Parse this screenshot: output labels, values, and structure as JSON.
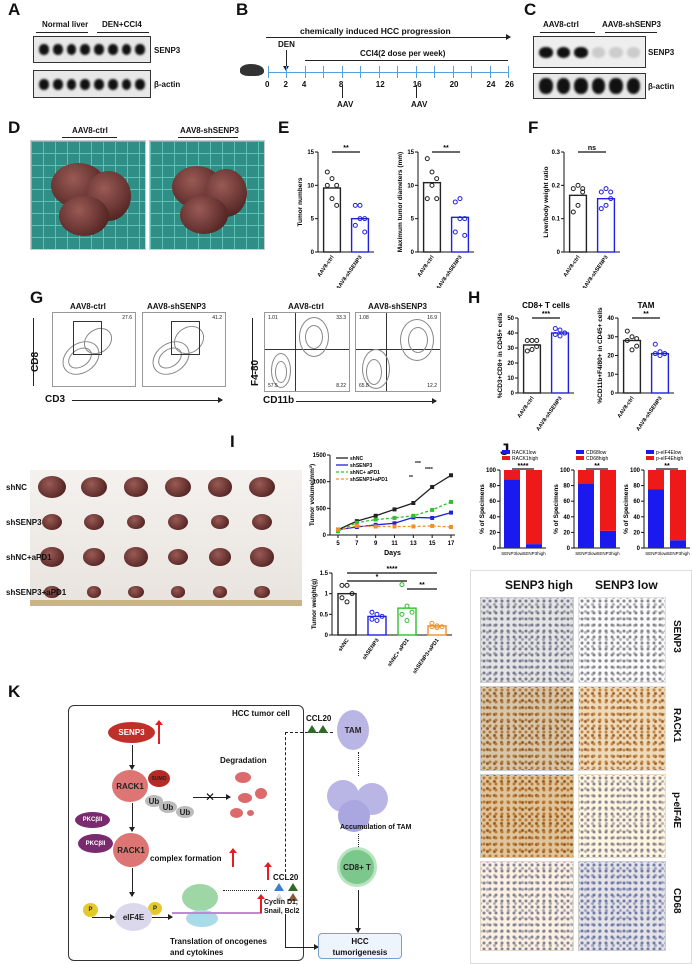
{
  "panels": {
    "A": "A",
    "B": "B",
    "C": "C",
    "D": "D",
    "E": "E",
    "F": "F",
    "G": "G",
    "H": "H",
    "I": "I",
    "J": "J",
    "K": "K"
  },
  "panel_a": {
    "group1": "Normal liver",
    "group2": "DEN+CCl4",
    "row1": "SENP3",
    "row2": "β-actin"
  },
  "panel_b": {
    "progression": "chemically induced HCC progression",
    "den": "DEN",
    "ccl4": "CCl4(2 dose per week)",
    "ticks": [
      "0",
      "2",
      "4",
      "8",
      "12",
      "16",
      "20",
      "24",
      "26"
    ],
    "aav1": "AAV",
    "aav2": "AAV"
  },
  "panel_c": {
    "group1": "AAV8-ctrl",
    "group2": "AAV8-shSENP3",
    "row1": "SENP3",
    "row2": "β-actin"
  },
  "panel_d": {
    "group1": "AAV8-ctrl",
    "group2": "AAV8-shSENP3"
  },
  "panel_g": {
    "title1": "AAV8-ctrl",
    "title2": "AAV8-shSENP3",
    "title3": "AAV8-ctrl",
    "title4": "AAV8-shSENP3",
    "y1": "CD8",
    "x1": "CD3",
    "y2": "F4-80",
    "x2": "CD11b",
    "gate1": "27.6",
    "gate2": "41.2",
    "q3": [
      "1.01",
      "33.3",
      "57.5",
      "8.22"
    ],
    "q4": [
      "1.08",
      "16.9",
      "65.8",
      "12.2"
    ]
  },
  "panel_i": {
    "rows": [
      "shNC",
      "shSENP3",
      "shNC+aPD1",
      "shSENP3+aPD1"
    ]
  },
  "panel_ihc": {
    "col1": "SENP3 high",
    "col2": "SENP3 low",
    "rows": [
      "SENP3",
      "RACK1",
      "p-eIF4E",
      "CD68"
    ]
  },
  "panel_k": {
    "cell": "HCC tumor cell",
    "senp3": "SENP3",
    "rack1": "RACK1",
    "rack1b": "RACK1",
    "sumo": "SUMO",
    "ub": [
      "Ub",
      "Ub",
      "Ub"
    ],
    "degradation": "Degradation",
    "pkc1": "PKCβII",
    "pkc2": "PKCβII",
    "complex": "complex formation",
    "p1": "P",
    "p2": "P",
    "eif4e": "eIF4E",
    "translation1": "Translation of oncogenes",
    "translation2": "and cytokines",
    "ccl20a": "CCL20",
    "cyclin1": "Cyclin D1,",
    "cyclin2": "Snail, Bcl2",
    "ccl20b": "CCL20",
    "tam": "TAM",
    "accum": "Accumulation of TAM",
    "cd8": "CD8+ T",
    "hcc1": "HCC",
    "hcc2": "tumorigenesis"
  },
  "colors": {
    "ctrl": "#222222",
    "sh": "#2020e0",
    "green": "#30c030",
    "orange": "#f0902a",
    "low": "#1a1aee",
    "high": "#ee1a1a"
  },
  "chart_data": [
    {
      "id": "e1",
      "type": "bar",
      "ylabel": "Tumor numbers",
      "ylim": [
        0,
        15
      ],
      "ticks": [
        0,
        5,
        10,
        15
      ],
      "categories": [
        "AAV8-ctrl",
        "AAV8-shSENP3"
      ],
      "values": [
        9.6,
        5.0
      ],
      "points": [
        [
          12,
          11,
          10,
          10,
          8,
          7
        ],
        [
          7,
          7,
          5,
          4,
          5,
          3
        ]
      ],
      "sig": "**"
    },
    {
      "id": "e2",
      "type": "bar",
      "ylabel": "Maximum tumor diameters (mm)",
      "ylim": [
        0,
        15
      ],
      "ticks": [
        0,
        5,
        10,
        15
      ],
      "categories": [
        "AAV8-ctrl",
        "AAV8-shSENP3"
      ],
      "values": [
        10.4,
        5.2
      ],
      "points": [
        [
          14,
          12,
          8,
          8,
          10,
          11
        ],
        [
          7.5,
          8,
          5,
          3,
          5,
          2.5
        ]
      ],
      "sig": "**"
    },
    {
      "id": "f",
      "type": "bar",
      "ylabel": "Liver/body weight ratio",
      "ylim": [
        0,
        0.3
      ],
      "ticks": [
        0,
        0.1,
        0.2,
        0.3
      ],
      "categories": [
        "AAV8-ctrl",
        "AAV8-shSENP3"
      ],
      "values": [
        0.17,
        0.16
      ],
      "points": [
        [
          0.19,
          0.2,
          0.19,
          0.12,
          0.14,
          0.18
        ],
        [
          0.18,
          0.19,
          0.18,
          0.13,
          0.14,
          0.16
        ]
      ],
      "sig": "ns"
    },
    {
      "id": "h1",
      "type": "bar",
      "title": "CD8+ T cells",
      "ylabel": "%CD3+CD8+ in CD45+ cells",
      "ylim": [
        0,
        50
      ],
      "ticks": [
        0,
        10,
        20,
        30,
        40,
        50
      ],
      "categories": [
        "AAV8-ctrl",
        "AAV8-shSENP3"
      ],
      "values": [
        32,
        40
      ],
      "points": [
        [
          35,
          35,
          35,
          28,
          29,
          31
        ],
        [
          43,
          42,
          40,
          39,
          38,
          40
        ]
      ],
      "sig": "***"
    },
    {
      "id": "h2",
      "type": "bar",
      "title": "TAM",
      "ylabel": "%CD11b+F4/80+ in CD45+ cells",
      "ylim": [
        0,
        40
      ],
      "ticks": [
        0,
        10,
        20,
        30,
        40
      ],
      "categories": [
        "AAV8-ctrl",
        "AAV8-shSENP3"
      ],
      "values": [
        28,
        21
      ],
      "points": [
        [
          33,
          30,
          29,
          28,
          23,
          25
        ],
        [
          26,
          22,
          21,
          21,
          20,
          21
        ]
      ],
      "sig": "**"
    },
    {
      "id": "i1",
      "type": "line",
      "xlabel": "Days",
      "ylabel": "Tumor volume(mm³)",
      "ylim": [
        0,
        1500
      ],
      "ticks": [
        0,
        500,
        1000,
        1500
      ],
      "x": [
        5,
        7,
        9,
        11,
        13,
        15,
        17
      ],
      "series": [
        {
          "name": "shNC",
          "values": [
            100,
            260,
            360,
            480,
            600,
            900,
            1120
          ]
        },
        {
          "name": "shSENP3",
          "values": [
            100,
            150,
            190,
            220,
            330,
            320,
            420
          ]
        },
        {
          "name": "shNC+ aPD1",
          "values": [
            70,
            230,
            290,
            320,
            360,
            470,
            620
          ]
        },
        {
          "name": "shSENP3+aPD1",
          "values": [
            100,
            170,
            160,
            160,
            160,
            170,
            150
          ]
        }
      ],
      "sig": [
        "***",
        "****",
        "**"
      ]
    },
    {
      "id": "i2",
      "type": "bar",
      "ylabel": "Tumor weight(g)",
      "ylim": [
        0,
        1.5
      ],
      "ticks": [
        0,
        0.5,
        1.0,
        1.5
      ],
      "categories": [
        "shNC",
        "shSENP3",
        "shNC+ aPD1",
        "shSENP3+aPD1"
      ],
      "values": [
        1.0,
        0.45,
        0.65,
        0.22
      ],
      "points": [
        [
          1.2,
          1.2,
          1.0,
          0.9,
          0.8
        ],
        [
          0.55,
          0.5,
          0.45,
          0.38,
          0.35
        ],
        [
          1.22,
          0.7,
          0.55,
          0.5,
          0.35
        ],
        [
          0.28,
          0.22,
          0.2,
          0.2,
          0.18
        ]
      ],
      "sig": [
        "****",
        "*",
        "**"
      ]
    },
    {
      "id": "j1",
      "type": "stacked-bar",
      "ylabel": "% of Specimens",
      "ylim": [
        0,
        100
      ],
      "ticks": [
        0,
        20,
        40,
        60,
        80,
        100
      ],
      "categories": [
        "SENP3low",
        "SENP3high"
      ],
      "series": [
        {
          "name": "RACK1low",
          "values": [
            88,
            5
          ]
        },
        {
          "name": "RACK1high",
          "values": [
            12,
            95
          ]
        }
      ],
      "sig": "****"
    },
    {
      "id": "j2",
      "type": "stacked-bar",
      "ylabel": "% of Specimens",
      "ylim": [
        0,
        100
      ],
      "ticks": [
        0,
        20,
        40,
        60,
        80,
        100
      ],
      "categories": [
        "SENP3low",
        "SENP3high"
      ],
      "series": [
        {
          "name": "CD68low",
          "values": [
            83,
            22
          ]
        },
        {
          "name": "CD68high",
          "values": [
            17,
            78
          ]
        }
      ],
      "sig": "**"
    },
    {
      "id": "j3",
      "type": "stacked-bar",
      "ylabel": "% of Specimens",
      "ylim": [
        0,
        100
      ],
      "ticks": [
        0,
        20,
        40,
        60,
        80,
        100
      ],
      "categories": [
        "SENP3low",
        "SENP3high"
      ],
      "series": [
        {
          "name": "p-eIF4Elow",
          "values": [
            75,
            10
          ]
        },
        {
          "name": "p-eIF4Ehigh",
          "values": [
            25,
            90
          ]
        }
      ],
      "sig": "**"
    }
  ]
}
